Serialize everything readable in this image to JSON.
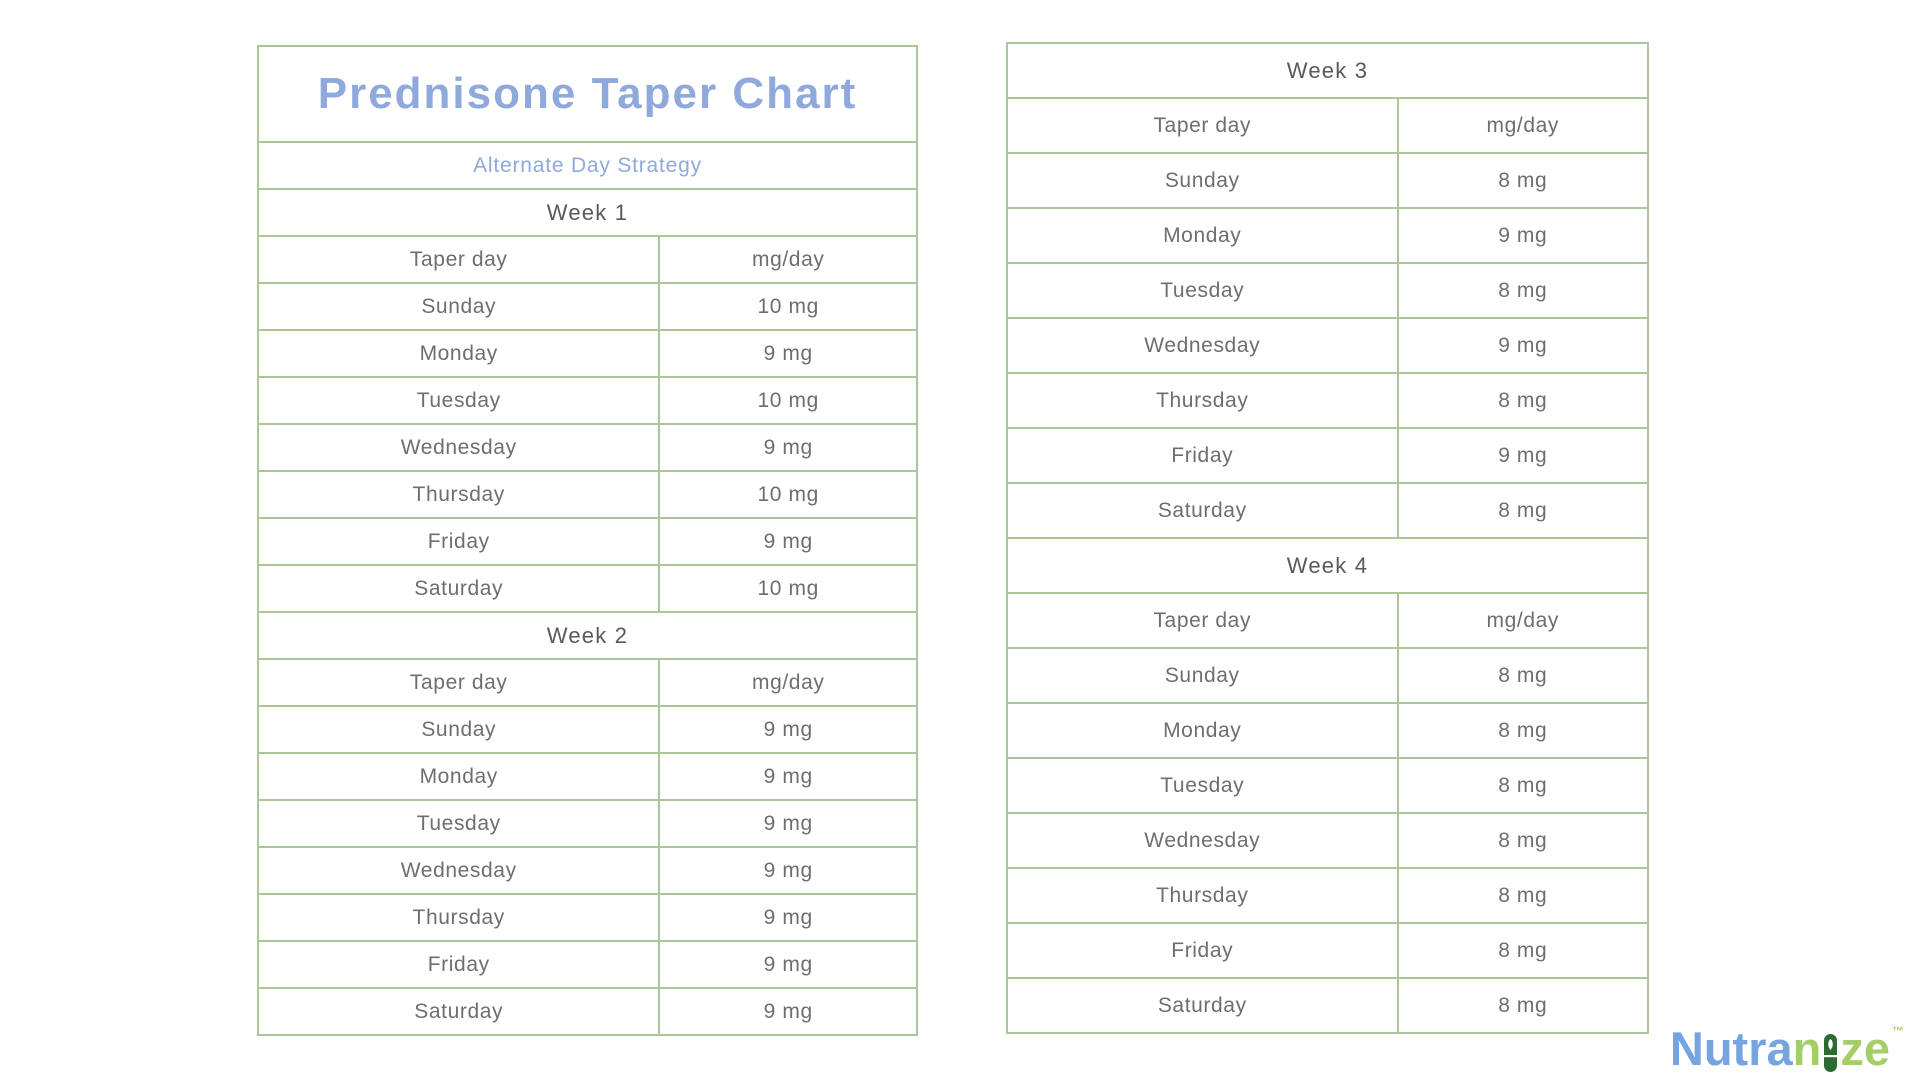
{
  "title_block": {
    "title": "Prednisone Taper Chart",
    "subtitle": "Alternate Day Strategy"
  },
  "chart_data": {
    "type": "table",
    "title": "Prednisone Taper Chart",
    "subtitle": "Alternate Day Strategy",
    "columns": [
      "Taper day",
      "mg/day"
    ],
    "weeks": [
      {
        "label": "Week 1",
        "rows": [
          [
            "Sunday",
            "10 mg"
          ],
          [
            "Monday",
            "9 mg"
          ],
          [
            "Tuesday",
            "10 mg"
          ],
          [
            "Wednesday",
            "9 mg"
          ],
          [
            "Thursday",
            "10 mg"
          ],
          [
            "Friday",
            "9 mg"
          ],
          [
            "Saturday",
            "10 mg"
          ]
        ]
      },
      {
        "label": "Week 2",
        "rows": [
          [
            "Sunday",
            "9 mg"
          ],
          [
            "Monday",
            "9 mg"
          ],
          [
            "Tuesday",
            "9 mg"
          ],
          [
            "Wednesday",
            "9 mg"
          ],
          [
            "Thursday",
            "9 mg"
          ],
          [
            "Friday",
            "9 mg"
          ],
          [
            "Saturday",
            "9 mg"
          ]
        ]
      },
      {
        "label": "Week 3",
        "rows": [
          [
            "Sunday",
            "8 mg"
          ],
          [
            "Monday",
            "9 mg"
          ],
          [
            "Tuesday",
            "8 mg"
          ],
          [
            "Wednesday",
            "9 mg"
          ],
          [
            "Thursday",
            "8 mg"
          ],
          [
            "Friday",
            "9 mg"
          ],
          [
            "Saturday",
            "8 mg"
          ]
        ]
      },
      {
        "label": "Week 4",
        "rows": [
          [
            "Sunday",
            "8 mg"
          ],
          [
            "Monday",
            "8 mg"
          ],
          [
            "Tuesday",
            "8 mg"
          ],
          [
            "Wednesday",
            "8 mg"
          ],
          [
            "Thursday",
            "8 mg"
          ],
          [
            "Friday",
            "8 mg"
          ],
          [
            "Saturday",
            "8 mg"
          ]
        ]
      }
    ],
    "layout": {
      "left_panel_weeks": [
        "Week 1",
        "Week 2"
      ],
      "right_panel_weeks": [
        "Week 3",
        "Week 4"
      ],
      "grid": "bordered two-column table with green lines",
      "legend_position": "none"
    }
  },
  "branding": {
    "logo_text_blue": "Nutra",
    "logo_text_green_before_capsule": "n",
    "logo_text_green_after_capsule": "ze",
    "trademark": "™",
    "capsule_icon": "pill-capsule-with-leaf"
  },
  "colors": {
    "background": "#ffffff",
    "table_border": "#abc698",
    "title_text": "#8fa9dc",
    "subtitle_text": "#8fa9dc",
    "week_label_text": "#595959",
    "cell_text": "#6e6e6e",
    "logo_blue": "#76a4e0",
    "logo_green": "#a4cf68",
    "capsule_dark_green": "#2e6b33"
  }
}
